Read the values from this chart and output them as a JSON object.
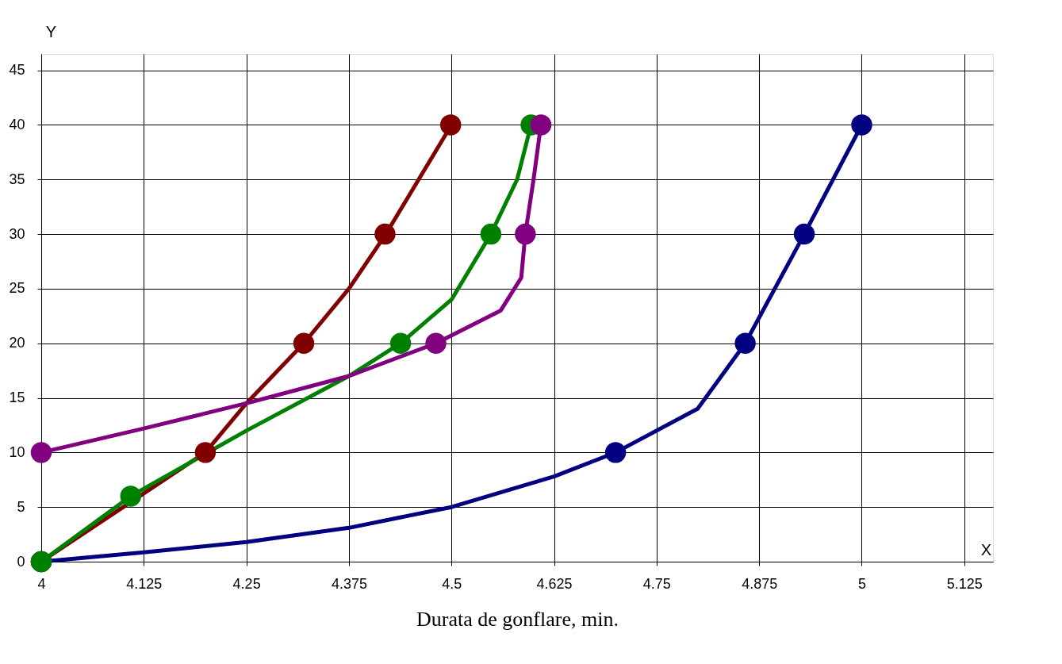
{
  "chart_data": {
    "type": "line",
    "xlabel": "Durata de gonflare, min.",
    "ylabel": "Y",
    "annotations": [
      "X"
    ],
    "xlim": [
      4,
      5.16
    ],
    "ylim": [
      0,
      46.5
    ],
    "xticks": [
      4,
      4.125,
      4.25,
      4.375,
      4.5,
      4.625,
      4.75,
      4.875,
      5,
      5.125
    ],
    "yticks": [
      0,
      5,
      10,
      15,
      20,
      25,
      30,
      35,
      40,
      45
    ],
    "grid": true,
    "line_style": "solid",
    "series": [
      {
        "color": "#000080",
        "marker": "none",
        "x": [
          4,
          4.125,
          4.25,
          4.375,
          4.5,
          4.625,
          4.7,
          4.8,
          4.858,
          4.93,
          5
        ],
        "values": [
          0,
          0.85,
          1.8,
          3.1,
          5.0,
          7.8,
          10,
          14,
          20,
          30,
          40
        ]
      },
      {
        "color": "#800000",
        "marker": "none",
        "x": [
          4,
          4.1,
          4.2,
          4.25,
          4.32,
          4.375,
          4.42,
          4.46,
          4.5
        ],
        "values": [
          0,
          5,
          10,
          14.5,
          20,
          25,
          30,
          35,
          40
        ]
      },
      {
        "color": "#008000",
        "marker": "none",
        "x": [
          4,
          4.109,
          4.25,
          4.375,
          4.438,
          4.5,
          4.548,
          4.58,
          4.597
        ],
        "values": [
          0,
          6,
          12,
          17,
          20,
          24,
          30,
          35,
          40
        ]
      },
      {
        "color": "#800080",
        "marker": "none",
        "x": [
          4,
          4.125,
          4.25,
          4.375,
          4.481,
          4.56,
          4.585,
          4.59,
          4.6,
          4.609
        ],
        "values": [
          10,
          12.2,
          14.5,
          17,
          20,
          23,
          26,
          30,
          35,
          40
        ]
      },
      {
        "type": "scatter",
        "marker": "circle",
        "color": "#000080",
        "x": [
          4,
          4.7,
          4.858,
          4.93,
          5
        ],
        "values": [
          0,
          10,
          20,
          30,
          40
        ]
      },
      {
        "type": "scatter",
        "marker": "circle",
        "color": "#800000",
        "x": [
          4,
          4.2,
          4.32,
          4.419,
          4.499
        ],
        "values": [
          0,
          10,
          20,
          30,
          40
        ]
      },
      {
        "type": "scatter",
        "marker": "circle",
        "color": "#008000",
        "x": [
          4,
          4.109,
          4.438,
          4.548,
          4.597
        ],
        "values": [
          0,
          6,
          20,
          30,
          40
        ]
      },
      {
        "type": "scatter",
        "marker": "circle",
        "color": "#800080",
        "x": [
          4,
          4.481,
          4.59,
          4.609
        ],
        "values": [
          10,
          20,
          30,
          40
        ]
      }
    ]
  }
}
